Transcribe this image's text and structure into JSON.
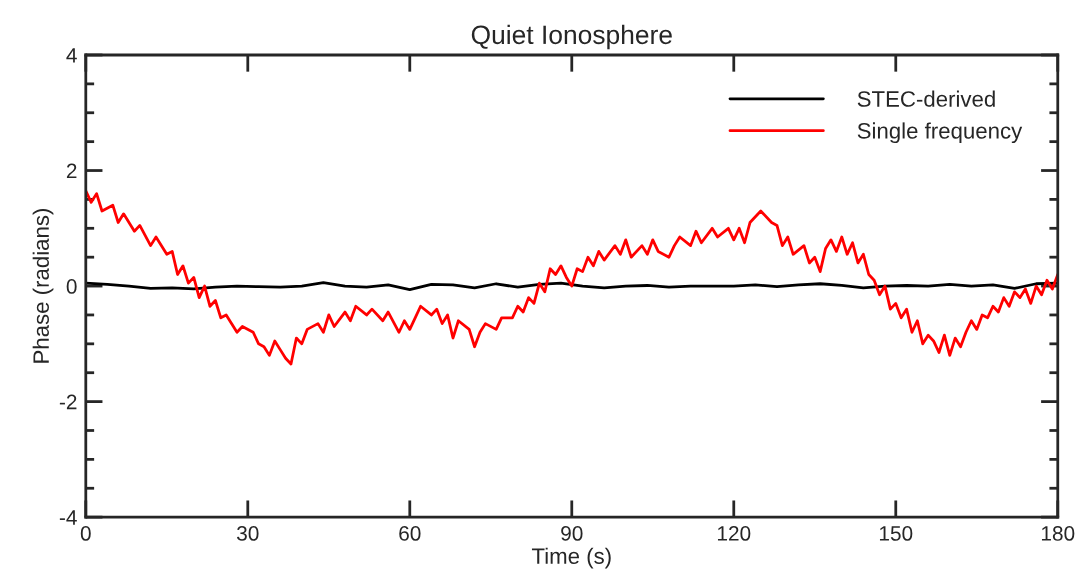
{
  "chart_data": {
    "type": "line",
    "title": "Quiet Ionosphere",
    "xlabel": "Time (s)",
    "ylabel": "Phase (radians)",
    "xlim": [
      0,
      180
    ],
    "xticks": [
      0,
      30,
      60,
      90,
      120,
      150,
      180
    ],
    "ylim": [
      -4,
      4
    ],
    "yticks": [
      -4,
      {
        "value": -3.5,
        "label": null
      },
      {
        "value": -3,
        "label": null
      },
      {
        "value": -2.5,
        "label": null
      },
      -2,
      {
        "value": -1.5,
        "label": null
      },
      {
        "value": -1,
        "label": null
      },
      {
        "value": -0.5,
        "label": null
      },
      0,
      {
        "value": 0.5,
        "label": null
      },
      {
        "value": 1,
        "label": null
      },
      {
        "value": 1.5,
        "label": null
      },
      2,
      {
        "value": 2.5,
        "label": null
      },
      {
        "value": 3,
        "label": null
      },
      {
        "value": 3.5,
        "label": null
      },
      4
    ],
    "grid": false,
    "legend": "top right",
    "marker": "none",
    "line_style": "solid",
    "series": [
      {
        "name": "STEC-derived",
        "color": "#000000",
        "x": [
          0,
          4,
          8,
          12,
          16,
          20,
          24,
          28,
          32,
          36,
          40,
          44,
          48,
          52,
          56,
          60,
          64,
          68,
          72,
          76,
          80,
          84,
          88,
          92,
          96,
          100,
          104,
          108,
          112,
          116,
          120,
          124,
          128,
          132,
          136,
          140,
          144,
          148,
          152,
          156,
          160,
          164,
          168,
          172,
          176,
          180
        ],
        "values": [
          0.05,
          0.03,
          0.0,
          -0.04,
          -0.03,
          -0.05,
          -0.02,
          0.0,
          -0.01,
          -0.02,
          0.0,
          0.06,
          0.0,
          -0.02,
          0.02,
          -0.06,
          0.03,
          0.02,
          -0.03,
          0.04,
          -0.02,
          0.03,
          0.05,
          0.0,
          -0.03,
          0.0,
          0.01,
          -0.02,
          0.0,
          0.0,
          0.0,
          0.02,
          -0.01,
          0.02,
          0.04,
          0.01,
          -0.03,
          0.0,
          0.01,
          0.0,
          0.03,
          0.0,
          0.02,
          -0.04,
          0.04,
          0.05
        ]
      },
      {
        "name": "Single frequency",
        "color": "#ff0000",
        "x": [
          0,
          1,
          2,
          3,
          5,
          6,
          7,
          9,
          10,
          12,
          13,
          15,
          16,
          17,
          18,
          19,
          20,
          21,
          22,
          23,
          24,
          25,
          26,
          28,
          29,
          31,
          32,
          33,
          34,
          35,
          36,
          37,
          38,
          39,
          40,
          41,
          43,
          44,
          45,
          46,
          48,
          49,
          50,
          52,
          53,
          55,
          56,
          58,
          59,
          60,
          61,
          62,
          64,
          65,
          66,
          67,
          68,
          69,
          71,
          72,
          73,
          74,
          76,
          77,
          79,
          80,
          81,
          82,
          83,
          84,
          85,
          86,
          87,
          88,
          89,
          90,
          91,
          92,
          93,
          94,
          95,
          96,
          98,
          99,
          100,
          101,
          103,
          104,
          105,
          106,
          108,
          109,
          110,
          112,
          113,
          114,
          116,
          117,
          119,
          120,
          121,
          122,
          123,
          124,
          125,
          127,
          128,
          129,
          130,
          131,
          133,
          134,
          135,
          136,
          137,
          138,
          139,
          140,
          141,
          142,
          143,
          144,
          145,
          146,
          147,
          148,
          149,
          150,
          151,
          152,
          153,
          154,
          155,
          156,
          157,
          158,
          159,
          160,
          161,
          162,
          163,
          164,
          165,
          166,
          167,
          168,
          169,
          170,
          171,
          172,
          173,
          174,
          175,
          176,
          177,
          178,
          179,
          180
        ],
        "values": [
          1.65,
          1.45,
          1.6,
          1.3,
          1.4,
          1.1,
          1.25,
          0.95,
          1.05,
          0.7,
          0.85,
          0.55,
          0.6,
          0.2,
          0.35,
          0.05,
          0.15,
          -0.2,
          0.0,
          -0.35,
          -0.25,
          -0.55,
          -0.5,
          -0.8,
          -0.7,
          -0.8,
          -1.0,
          -1.05,
          -1.2,
          -0.95,
          -1.1,
          -1.25,
          -1.35,
          -0.9,
          -1.0,
          -0.75,
          -0.65,
          -0.8,
          -0.5,
          -0.7,
          -0.45,
          -0.6,
          -0.35,
          -0.5,
          -0.4,
          -0.6,
          -0.45,
          -0.8,
          -0.6,
          -0.75,
          -0.55,
          -0.35,
          -0.5,
          -0.4,
          -0.65,
          -0.5,
          -0.9,
          -0.6,
          -0.75,
          -1.05,
          -0.8,
          -0.65,
          -0.75,
          -0.55,
          -0.55,
          -0.35,
          -0.45,
          -0.2,
          -0.3,
          0.05,
          -0.1,
          0.3,
          0.2,
          0.35,
          0.15,
          0.0,
          0.3,
          0.25,
          0.5,
          0.35,
          0.6,
          0.45,
          0.7,
          0.55,
          0.8,
          0.5,
          0.7,
          0.55,
          0.8,
          0.6,
          0.5,
          0.7,
          0.85,
          0.7,
          0.95,
          0.75,
          1.0,
          0.85,
          1.0,
          0.8,
          1.0,
          0.75,
          1.1,
          1.2,
          1.3,
          1.1,
          1.05,
          0.7,
          0.85,
          0.55,
          0.7,
          0.4,
          0.5,
          0.25,
          0.65,
          0.8,
          0.6,
          0.85,
          0.55,
          0.75,
          0.4,
          0.55,
          0.2,
          0.1,
          -0.15,
          0.0,
          -0.4,
          -0.3,
          -0.55,
          -0.4,
          -0.8,
          -0.6,
          -1.0,
          -0.85,
          -0.95,
          -1.15,
          -0.85,
          -1.2,
          -0.9,
          -1.05,
          -0.8,
          -0.6,
          -0.75,
          -0.5,
          -0.55,
          -0.35,
          -0.45,
          -0.2,
          -0.35,
          -0.1,
          -0.2,
          -0.05,
          -0.3,
          0.0,
          -0.15,
          0.1,
          -0.05,
          0.2
        ]
      }
    ]
  }
}
